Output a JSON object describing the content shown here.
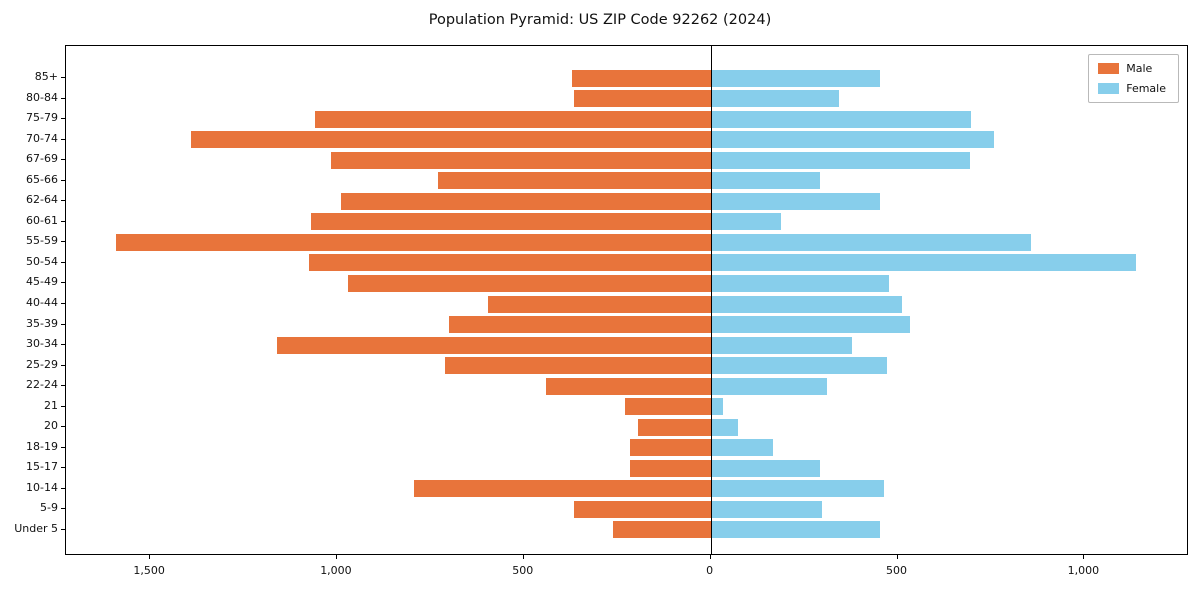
{
  "title": "Population Pyramid: US ZIP Code 92262 (2024)",
  "legend": {
    "male_label": "Male",
    "female_label": "Female"
  },
  "colors": {
    "male": "#e8743b",
    "female": "#87ceeb",
    "axis": "#000000"
  },
  "chart_data": {
    "type": "bar",
    "variant": "population-pyramid",
    "orientation": "horizontal",
    "title": "Population Pyramid: US ZIP Code 92262 (2024)",
    "categories": [
      "85+",
      "80-84",
      "75-79",
      "70-74",
      "67-69",
      "65-66",
      "62-64",
      "60-61",
      "55-59",
      "50-54",
      "45-49",
      "40-44",
      "35-39",
      "30-34",
      "25-29",
      "22-24",
      "21",
      "20",
      "18-19",
      "15-17",
      "10-14",
      "5-9",
      "Under 5"
    ],
    "series": [
      {
        "name": "Male",
        "side": "left",
        "color": "#e8743b",
        "values": [
          370,
          365,
          1060,
          1390,
          1015,
          730,
          990,
          1070,
          1590,
          1075,
          970,
          595,
          700,
          1160,
          710,
          440,
          230,
          195,
          215,
          215,
          795,
          365,
          260
        ]
      },
      {
        "name": "Female",
        "side": "right",
        "color": "#87ceeb",
        "values": [
          450,
          340,
          695,
          755,
          690,
          290,
          450,
          185,
          855,
          1135,
          475,
          510,
          530,
          375,
          470,
          310,
          30,
          70,
          165,
          290,
          460,
          295,
          450
        ]
      }
    ],
    "x_ticks": [
      {
        "value": -1500,
        "label": "1,500"
      },
      {
        "value": -1000,
        "label": "1,000"
      },
      {
        "value": -500,
        "label": "500"
      },
      {
        "value": 0,
        "label": "0"
      },
      {
        "value": 500,
        "label": "500"
      },
      {
        "value": 1000,
        "label": "1,000"
      }
    ],
    "xlim": [
      -1725,
      1280
    ],
    "grid": false,
    "legend_position": "upper right"
  }
}
